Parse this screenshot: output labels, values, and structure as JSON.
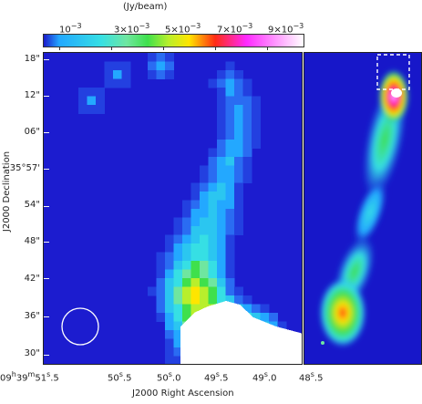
{
  "colorbar": {
    "unit_label": "(Jy/beam)",
    "ticks": [
      {
        "mantissa": "",
        "exp": "-3"
      },
      {
        "mantissa": "3×",
        "exp": "-3"
      },
      {
        "mantissa": "5×",
        "exp": "-3"
      },
      {
        "mantissa": "7×",
        "exp": "-3"
      },
      {
        "mantissa": "9×",
        "exp": "-3"
      }
    ],
    "colors": [
      "#1b1bcb",
      "#23a8ff",
      "#36dfe4",
      "#6fe6a0",
      "#3fe04c",
      "#b8ef2c",
      "#ffe500",
      "#ff2c14",
      "#ff2aff",
      "#ffffff"
    ]
  },
  "axes": {
    "y_label": "J2000 Declination",
    "y_ticks": [
      "18\"",
      "12\"",
      "06\"",
      "35°57'",
      "54\"",
      "48\"",
      "42\"",
      "36\"",
      "30\""
    ],
    "x_label": "J2000 Right Ascension",
    "x_ticks": [
      "09h39m51s.5",
      "50s.5",
      "50s.0",
      "49s.5",
      "49s.0",
      "48s.5"
    ]
  },
  "map": {
    "beam": "beam-circle",
    "left_panel": "low-resolution-map",
    "right_panel": "high-resolution-map",
    "inset_box": "dashed-region"
  }
}
